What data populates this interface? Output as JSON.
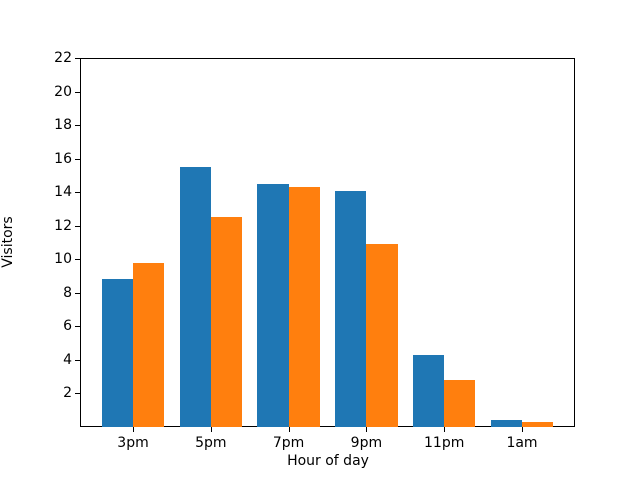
{
  "chart_data": {
    "type": "bar",
    "title": "",
    "xlabel": "Hour of day",
    "ylabel": "Visitors",
    "categories": [
      "3pm",
      "5pm",
      "7pm",
      "9pm",
      "11pm",
      "1am"
    ],
    "series": [
      {
        "name": "series-blue",
        "color": "#1f77b4",
        "values": [
          8.8,
          15.5,
          14.5,
          14.1,
          4.3,
          0.4
        ]
      },
      {
        "name": "series-orange",
        "color": "#ff7f0e",
        "values": [
          9.8,
          12.5,
          14.3,
          10.9,
          2.8,
          0.3
        ]
      }
    ],
    "ylim": [
      0,
      22
    ],
    "yticks": [
      2,
      4,
      6,
      8,
      10,
      12,
      14,
      16,
      18,
      20,
      22
    ],
    "grid": false,
    "legend": "none",
    "bar_width_fraction": 0.4,
    "background": "#ffffff",
    "spine_color": "#000000",
    "text_color": "#000000"
  }
}
